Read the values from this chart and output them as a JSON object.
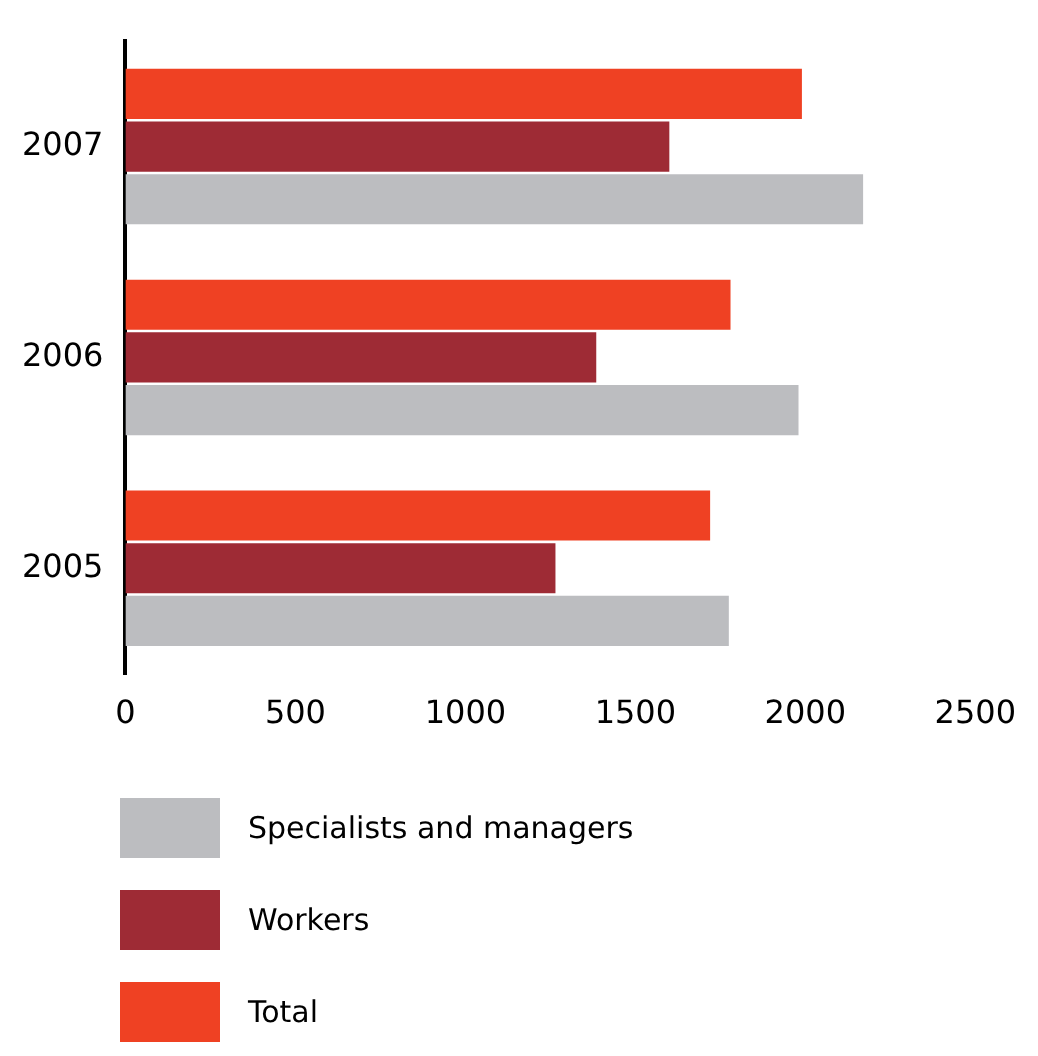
{
  "chart_data": {
    "type": "bar",
    "orientation": "horizontal",
    "categories": [
      "2007",
      "2006",
      "2005"
    ],
    "series": [
      {
        "name": "Total",
        "color": "#ef4123",
        "values": [
          1990,
          1780,
          1720
        ]
      },
      {
        "name": "Workers",
        "color": "#9e2b35",
        "values": [
          1600,
          1385,
          1265
        ]
      },
      {
        "name": "Specialists and managers",
        "color": "#bcbdc0",
        "values": [
          2170,
          1980,
          1775
        ]
      }
    ],
    "xlim": [
      0,
      2500
    ],
    "xticks": [
      0,
      500,
      1000,
      1500,
      2000,
      2500
    ],
    "grid": false,
    "legend": "bottom"
  }
}
